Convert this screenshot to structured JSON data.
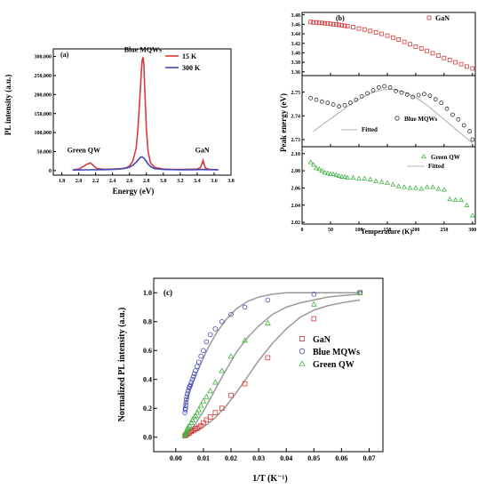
{
  "colors": {
    "red": "#d83a3a",
    "blue": "#4048b8",
    "green": "#46b646",
    "fit": "#9a9a9a",
    "axis": "#000000"
  },
  "chart_data": [
    {
      "id": "a",
      "type": "line",
      "panel_label": "(a)",
      "xlabel": "Energy (eV)",
      "ylabel": "PL intensity (a.u.)",
      "xlim": [
        1.7,
        3.8
      ],
      "ylim": [
        -12000,
        320000
      ],
      "xticks": [
        "1.8",
        "2.0",
        "2.2",
        "2.4",
        "2.6",
        "2.8",
        "3.0",
        "3.2",
        "3.4",
        "3.6",
        "3.8"
      ],
      "xtick_values": [
        1.8,
        2.0,
        2.2,
        2.4,
        2.6,
        2.8,
        3.0,
        3.2,
        3.4,
        3.6,
        3.8
      ],
      "yticks": [
        "0",
        "50,000",
        "100,000",
        "150,000",
        "200,000",
        "250,000",
        "300,000"
      ],
      "ytick_values": [
        0,
        50000,
        100000,
        150000,
        200000,
        250000,
        300000
      ],
      "annotations": [
        {
          "text": "Blue MQWs",
          "x": 2.76,
          "y": 312000
        },
        {
          "text": "Green QW",
          "x": 2.06,
          "y": 48000
        },
        {
          "text": "GaN",
          "x": 3.46,
          "y": 48000
        }
      ],
      "series": [
        {
          "name": "15 K",
          "color": "#d83a3a",
          "x": [
            1.93,
            2.0,
            2.05,
            2.1,
            2.14,
            2.18,
            2.22,
            2.3,
            2.4,
            2.5,
            2.56,
            2.6,
            2.64,
            2.68,
            2.7,
            2.72,
            2.74,
            2.75,
            2.76,
            2.77,
            2.78,
            2.8,
            2.82,
            2.85,
            2.9,
            3.0,
            3.1,
            3.2,
            3.3,
            3.4,
            3.44,
            3.46,
            3.47,
            3.48,
            3.5,
            3.55,
            3.65
          ],
          "values": [
            2000,
            4000,
            10000,
            17000,
            20000,
            12000,
            5000,
            3500,
            4000,
            5000,
            7000,
            12000,
            25000,
            60000,
            110000,
            180000,
            260000,
            290000,
            298000,
            280000,
            220000,
            110000,
            50000,
            20000,
            8000,
            4000,
            3000,
            3000,
            3500,
            4000,
            8000,
            20000,
            27000,
            18000,
            6000,
            3000,
            2500
          ]
        },
        {
          "name": "300 K",
          "color": "#4048b8",
          "x": [
            1.93,
            2.1,
            2.3,
            2.45,
            2.55,
            2.6,
            2.64,
            2.68,
            2.71,
            2.73,
            2.75,
            2.77,
            2.79,
            2.82,
            2.86,
            2.9,
            3.0,
            3.2,
            3.4,
            3.47,
            3.5,
            3.65
          ],
          "values": [
            1500,
            2000,
            2500,
            3500,
            6000,
            9000,
            14000,
            22000,
            30000,
            35000,
            36000,
            33000,
            27000,
            17000,
            9000,
            5000,
            3000,
            2000,
            2500,
            3000,
            2500,
            2000
          ]
        }
      ]
    },
    {
      "id": "b",
      "type": "scatter",
      "panel_label": "(b)",
      "xlabel": "Temperature (K)",
      "ylabel": "Peak energy (eV)",
      "xlim": [
        0,
        305
      ],
      "xticks": [
        "0",
        "50",
        "100",
        "150",
        "200",
        "250",
        "300"
      ],
      "xtick_values": [
        0,
        50,
        100,
        150,
        200,
        250,
        300
      ],
      "subpanels": [
        {
          "name": "GaN",
          "marker": "square",
          "color": "#d83a3a",
          "ylim": [
            3.352,
            3.485
          ],
          "yticks": [
            "3.36",
            "3.38",
            "3.40",
            "3.42",
            "3.44",
            "3.46",
            "3.48"
          ],
          "ytick_values": [
            3.36,
            3.38,
            3.4,
            3.42,
            3.44,
            3.46,
            3.48
          ],
          "legend": [
            "GaN"
          ],
          "x": [
            15,
            20,
            25,
            30,
            35,
            40,
            45,
            50,
            55,
            60,
            65,
            70,
            75,
            80,
            90,
            100,
            110,
            120,
            130,
            140,
            150,
            160,
            170,
            180,
            190,
            200,
            210,
            220,
            230,
            240,
            250,
            260,
            270,
            280,
            290,
            300
          ],
          "y": [
            3.465,
            3.464,
            3.464,
            3.463,
            3.463,
            3.462,
            3.462,
            3.461,
            3.46,
            3.46,
            3.459,
            3.458,
            3.457,
            3.456,
            3.454,
            3.451,
            3.449,
            3.446,
            3.443,
            3.44,
            3.436,
            3.432,
            3.428,
            3.423,
            3.418,
            3.413,
            3.409,
            3.404,
            3.399,
            3.394,
            3.389,
            3.385,
            3.38,
            3.376,
            3.371,
            3.367
          ]
        },
        {
          "name": "Blue MQWs",
          "marker": "circle",
          "color": "#333333",
          "ylim": [
            2.727,
            2.757
          ],
          "yticks": [
            "2.73",
            "2.74",
            "2.75"
          ],
          "ytick_values": [
            2.73,
            2.74,
            2.75
          ],
          "legend": [
            "Blue MQWs",
            "Fitted"
          ],
          "x": [
            15,
            25,
            35,
            45,
            55,
            65,
            75,
            85,
            95,
            105,
            115,
            125,
            135,
            145,
            155,
            165,
            175,
            185,
            195,
            205,
            215,
            225,
            235,
            245,
            255,
            265,
            275,
            285,
            295,
            300
          ],
          "y": [
            2.7475,
            2.7468,
            2.746,
            2.7455,
            2.7448,
            2.744,
            2.7445,
            2.7455,
            2.7468,
            2.7482,
            2.7495,
            2.7508,
            2.752,
            2.7525,
            2.752,
            2.7505,
            2.7498,
            2.749,
            2.748,
            2.7488,
            2.7492,
            2.7485,
            2.747,
            2.7455,
            2.743,
            2.7405,
            2.7385,
            2.736,
            2.7335,
            2.73
          ],
          "fit_x": [
            20,
            40,
            60,
            80,
            100,
            120,
            140,
            160,
            180,
            200,
            220,
            240,
            260,
            280,
            300
          ],
          "fit_y": [
            2.7335,
            2.737,
            2.7405,
            2.744,
            2.747,
            2.7495,
            2.751,
            2.7512,
            2.75,
            2.7478,
            2.7445,
            2.7405,
            2.7365,
            2.7325,
            2.7285
          ]
        },
        {
          "name": "Green QW",
          "marker": "triangle",
          "color": "#46b646",
          "ylim": [
            2.018,
            2.108
          ],
          "yticks": [
            "2.02",
            "2.04",
            "2.06",
            "2.08",
            "2.10"
          ],
          "ytick_values": [
            2.02,
            2.04,
            2.06,
            2.08,
            2.1
          ],
          "legend": [
            "Green QW",
            "Fitted"
          ],
          "x": [
            15,
            20,
            25,
            30,
            35,
            40,
            45,
            50,
            55,
            60,
            65,
            70,
            75,
            80,
            90,
            100,
            110,
            120,
            130,
            140,
            150,
            160,
            170,
            180,
            190,
            200,
            210,
            220,
            230,
            240,
            250,
            260,
            270,
            280,
            290,
            300
          ],
          "y": [
            2.09,
            2.087,
            2.083,
            2.082,
            2.08,
            2.078,
            2.077,
            2.076,
            2.076,
            2.075,
            2.074,
            2.073,
            2.073,
            2.072,
            2.072,
            2.071,
            2.071,
            2.07,
            2.068,
            2.067,
            2.066,
            2.064,
            2.062,
            2.061,
            2.06,
            2.06,
            2.059,
            2.061,
            2.061,
            2.059,
            2.058,
            2.047,
            2.046,
            2.046,
            2.04,
            2.028
          ]
        }
      ]
    },
    {
      "id": "c",
      "type": "scatter",
      "panel_label": "(c)",
      "xlabel": "1/T (K⁻¹)",
      "ylabel": "Normalized PL intensity (a.u.)",
      "xlim": [
        -0.008,
        0.075
      ],
      "ylim": [
        -0.1,
        1.1
      ],
      "xticks": [
        "0.00",
        "0.01",
        "0.02",
        "0.03",
        "0.04",
        "0.05",
        "0.06",
        "0.07"
      ],
      "xtick_values": [
        0.0,
        0.01,
        0.02,
        0.03,
        0.04,
        0.05,
        0.06,
        0.07
      ],
      "yticks": [
        "0.0",
        "0.2",
        "0.4",
        "0.6",
        "0.8",
        "1.0"
      ],
      "ytick_values": [
        0.0,
        0.2,
        0.4,
        0.6,
        0.8,
        1.0
      ],
      "series": [
        {
          "name": "GaN",
          "marker": "square",
          "color": "#d83a3a",
          "x": [
            0.0033,
            0.0036,
            0.004,
            0.0045,
            0.005,
            0.0055,
            0.006,
            0.0067,
            0.0071,
            0.0077,
            0.0083,
            0.0091,
            0.01,
            0.0111,
            0.0125,
            0.0143,
            0.0167,
            0.02,
            0.025,
            0.0333,
            0.05,
            0.0667
          ],
          "y": [
            0.01,
            0.015,
            0.02,
            0.025,
            0.03,
            0.04,
            0.045,
            0.05,
            0.06,
            0.06,
            0.07,
            0.08,
            0.1,
            0.12,
            0.14,
            0.17,
            0.2,
            0.29,
            0.37,
            0.55,
            0.82,
            1.0
          ]
        },
        {
          "name": "Blue MQWs",
          "marker": "circle",
          "color": "#4048b8",
          "x": [
            0.0033,
            0.0034,
            0.0035,
            0.0036,
            0.0037,
            0.0038,
            0.004,
            0.0042,
            0.0045,
            0.0048,
            0.005,
            0.0053,
            0.0056,
            0.006,
            0.0064,
            0.0067,
            0.0071,
            0.0077,
            0.0083,
            0.0091,
            0.01,
            0.0111,
            0.0125,
            0.0143,
            0.0167,
            0.02,
            0.025,
            0.0333,
            0.05,
            0.0667
          ],
          "y": [
            0.17,
            0.19,
            0.2,
            0.22,
            0.24,
            0.26,
            0.28,
            0.3,
            0.32,
            0.34,
            0.35,
            0.36,
            0.38,
            0.4,
            0.42,
            0.44,
            0.46,
            0.49,
            0.52,
            0.56,
            0.6,
            0.66,
            0.71,
            0.75,
            0.8,
            0.85,
            0.9,
            0.95,
            0.99,
            1.0
          ]
        },
        {
          "name": "Green QW",
          "marker": "triangle",
          "color": "#46b646",
          "x": [
            0.0033,
            0.0034,
            0.0036,
            0.0038,
            0.004,
            0.0042,
            0.0045,
            0.005,
            0.0056,
            0.006,
            0.0067,
            0.0071,
            0.0077,
            0.0083,
            0.0091,
            0.01,
            0.0111,
            0.0125,
            0.0143,
            0.0167,
            0.02,
            0.025,
            0.0333,
            0.05,
            0.0667
          ],
          "y": [
            0.01,
            0.02,
            0.03,
            0.04,
            0.05,
            0.06,
            0.07,
            0.08,
            0.1,
            0.12,
            0.14,
            0.15,
            0.17,
            0.19,
            0.22,
            0.25,
            0.28,
            0.32,
            0.38,
            0.46,
            0.56,
            0.67,
            0.79,
            0.92,
            1.0
          ]
        }
      ],
      "fits": [
        {
          "name": "GaN fit",
          "x": [
            0.003,
            0.006,
            0.01,
            0.014,
            0.018,
            0.022,
            0.026,
            0.03,
            0.035,
            0.04,
            0.045,
            0.05,
            0.055,
            0.06,
            0.0667
          ],
          "y": [
            0.01,
            0.03,
            0.07,
            0.13,
            0.21,
            0.31,
            0.42,
            0.53,
            0.65,
            0.75,
            0.83,
            0.88,
            0.91,
            0.93,
            0.95
          ]
        },
        {
          "name": "Blue MQWs fit",
          "x": [
            0.003,
            0.004,
            0.005,
            0.006,
            0.008,
            0.01,
            0.012,
            0.015,
            0.018,
            0.022,
            0.026,
            0.03,
            0.035,
            0.04,
            0.05,
            0.06,
            0.0667
          ],
          "y": [
            0.2,
            0.26,
            0.32,
            0.37,
            0.46,
            0.55,
            0.63,
            0.73,
            0.81,
            0.89,
            0.94,
            0.97,
            0.99,
            1.0,
            1.0,
            1.0,
            1.0
          ]
        },
        {
          "name": "Green QW fit",
          "x": [
            0.003,
            0.006,
            0.01,
            0.014,
            0.018,
            0.022,
            0.026,
            0.03,
            0.035,
            0.04,
            0.045,
            0.05,
            0.055,
            0.06,
            0.0667
          ],
          "y": [
            0.01,
            0.06,
            0.18,
            0.32,
            0.46,
            0.59,
            0.69,
            0.77,
            0.85,
            0.9,
            0.93,
            0.95,
            0.97,
            0.98,
            0.99
          ]
        }
      ]
    }
  ]
}
